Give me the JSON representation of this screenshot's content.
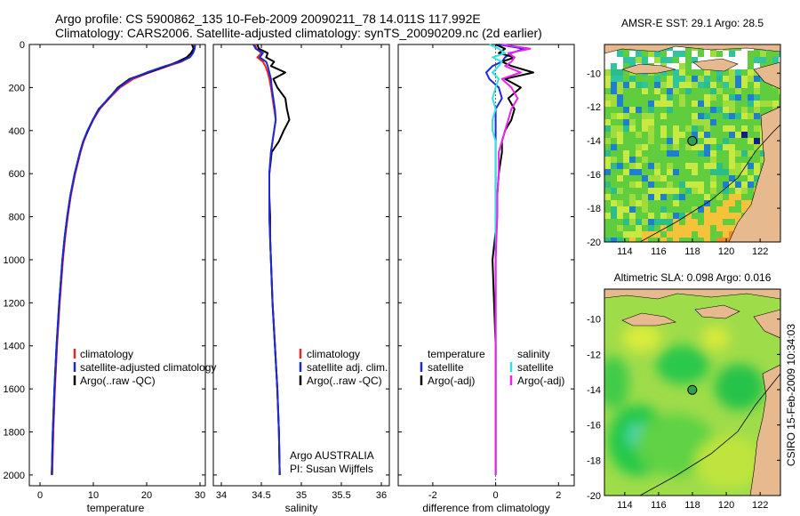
{
  "header": {
    "line1": "Argo profile: CS 5900862_135 10-Feb-2009 20090211_78 14.011S 117.992E",
    "line2": "Climatology: CARS2006. Satellite-adjusted climatology: synTS_20090209.nc (2d earlier)"
  },
  "colors": {
    "climatology": "#e8261f",
    "satellite": "#1a2ad8",
    "argo": "#000000",
    "satellite_salt": "#33e0e8",
    "argo_salt": "#ee22ee"
  },
  "chart_data": [
    {
      "type": "line",
      "id": "temperature",
      "xlabel": "temperature",
      "ylabel": "",
      "xlim": [
        -2,
        31
      ],
      "ylim": [
        2050,
        0
      ],
      "xticks": [
        "0",
        "10",
        "20",
        "30"
      ],
      "yticks": [
        "0",
        "200",
        "400",
        "600",
        "800",
        "1000",
        "1200",
        "1400",
        "1600",
        "1800",
        "2000"
      ],
      "legend": [
        "climatology",
        "satellite-adjusted climatology",
        "Argo(..raw -QC)"
      ],
      "depth": [
        0,
        20,
        40,
        60,
        80,
        100,
        130,
        160,
        200,
        250,
        300,
        350,
        400,
        450,
        500,
        600,
        700,
        800,
        900,
        1000,
        1200,
        1400,
        1600,
        1800,
        2000
      ],
      "series": [
        {
          "name": "climatology",
          "values": [
            29.0,
            28.9,
            28.6,
            28.0,
            26.5,
            24.0,
            20.5,
            17.5,
            15.0,
            13.0,
            11.2,
            10.0,
            9.0,
            8.2,
            7.6,
            6.6,
            5.8,
            5.2,
            4.7,
            4.3,
            3.7,
            3.2,
            2.8,
            2.5,
            2.3
          ]
        },
        {
          "name": "satellite-adjusted",
          "values": [
            29.1,
            29.0,
            28.7,
            28.1,
            26.3,
            23.5,
            20.0,
            17.0,
            14.8,
            12.8,
            11.1,
            9.9,
            8.9,
            8.1,
            7.5,
            6.5,
            5.7,
            5.1,
            4.6,
            4.2,
            3.6,
            3.1,
            2.7,
            2.4,
            2.2
          ]
        },
        {
          "name": "argo",
          "values": [
            28.5,
            28.8,
            28.3,
            27.5,
            25.8,
            23.8,
            20.3,
            16.8,
            14.6,
            12.9,
            11.0,
            9.9,
            9.0,
            8.1,
            7.5,
            6.5,
            5.7,
            5.1,
            4.6,
            4.2,
            3.6,
            3.1,
            2.7,
            2.4,
            2.2
          ]
        }
      ]
    },
    {
      "type": "line",
      "id": "salinity",
      "xlabel": "salinity",
      "xlim": [
        33.9,
        36.1
      ],
      "ylim": [
        2050,
        0
      ],
      "xticks": [
        "34",
        "34.5",
        "35",
        "35.5",
        "36"
      ],
      "legend": [
        "climatology",
        "satellite adj. clim.",
        "Argo(..raw -QC)"
      ],
      "annotations": [
        "Argo AUSTRALIA",
        "PI: Susan Wijffels"
      ],
      "depth": [
        0,
        20,
        40,
        60,
        80,
        100,
        130,
        160,
        200,
        250,
        300,
        350,
        400,
        450,
        500,
        600,
        700,
        800,
        900,
        1000,
        1200,
        1400,
        1600,
        1800,
        2000
      ],
      "series": [
        {
          "name": "climatology",
          "values": [
            34.42,
            34.44,
            34.5,
            34.45,
            34.52,
            34.55,
            34.58,
            34.6,
            34.62,
            34.64,
            34.66,
            34.68,
            34.66,
            34.64,
            34.62,
            34.6,
            34.6,
            34.6,
            34.61,
            34.62,
            34.64,
            34.67,
            34.7,
            34.72,
            34.73
          ]
        },
        {
          "name": "satellite",
          "values": [
            34.4,
            34.43,
            34.52,
            34.48,
            34.56,
            34.58,
            34.6,
            34.62,
            34.63,
            34.65,
            34.67,
            34.68,
            34.66,
            34.64,
            34.62,
            34.6,
            34.6,
            34.6,
            34.61,
            34.62,
            34.64,
            34.67,
            34.7,
            34.72,
            34.73
          ]
        },
        {
          "name": "argo",
          "values": [
            34.45,
            34.47,
            34.58,
            34.56,
            34.66,
            34.62,
            34.8,
            34.65,
            34.7,
            34.8,
            34.82,
            34.85,
            34.78,
            34.72,
            34.63,
            34.6,
            34.6,
            34.61,
            34.61,
            34.62,
            34.64,
            34.67,
            34.7,
            34.72,
            34.73
          ]
        }
      ]
    },
    {
      "type": "line",
      "id": "difference",
      "xlabel": "difference from climatology",
      "xlim": [
        -3.1,
        2.5
      ],
      "ylim": [
        2050,
        0
      ],
      "xticks": [
        "-2",
        "0",
        "2"
      ],
      "legend_left_title": "temperature",
      "legend_right_title": "salinity",
      "legend_left": [
        "satellite",
        "Argo(-adj)"
      ],
      "legend_right": [
        "satellite",
        "Argo(-adj)"
      ],
      "depth": [
        0,
        20,
        40,
        60,
        80,
        100,
        130,
        160,
        200,
        250,
        300,
        350,
        400,
        450,
        500,
        600,
        700,
        800,
        1000,
        1200,
        1400,
        1600,
        1800,
        2000
      ],
      "series": [
        {
          "name": "temperature satellite",
          "values": [
            0.1,
            0.9,
            0.5,
            0.3,
            0.2,
            -0.1,
            -0.3,
            -0.2,
            0.1,
            0.2,
            0.0,
            0.0,
            0.0,
            0.0,
            0.0,
            0.0,
            0.0,
            0.0,
            0.0,
            0.0,
            0.0,
            0.0,
            0.0,
            0.0
          ]
        },
        {
          "name": "temperature argo",
          "values": [
            0.0,
            0.3,
            0.1,
            0.6,
            0.2,
            0.5,
            1.2,
            0.3,
            0.8,
            0.4,
            0.6,
            0.5,
            0.3,
            0.2,
            0.2,
            0.1,
            0.05,
            0.05,
            -0.1,
            -0.05,
            0.0,
            0.0,
            0.0,
            0.0
          ]
        },
        {
          "name": "salinity satellite",
          "values": [
            -0.2,
            0.1,
            0.3,
            -0.1,
            0.2,
            0.1,
            -0.1,
            0.1,
            0.0,
            -0.1,
            0.0,
            -0.1,
            -0.1,
            0.0,
            0.0,
            0.0,
            0.0,
            0.0,
            0.0,
            0.0,
            0.0,
            0.0,
            0.0,
            0.0
          ]
        },
        {
          "name": "salinity argo",
          "values": [
            0.2,
            1.1,
            0.4,
            0.6,
            0.5,
            0.3,
            0.8,
            0.2,
            0.5,
            0.7,
            0.5,
            0.4,
            0.3,
            0.2,
            0.1,
            0.1,
            0.05,
            0.05,
            0.0,
            0.0,
            0.0,
            0.0,
            0.0,
            0.0
          ]
        }
      ]
    },
    {
      "type": "heatmap",
      "id": "sst-map",
      "title": "AMSR-E SST: 29.1 Argo: 28.5",
      "xticks": [
        "114",
        "116",
        "118",
        "120",
        "122"
      ],
      "yticks": [
        "-10",
        "-12",
        "-14",
        "-16",
        "-18",
        "-20"
      ],
      "xlim": [
        112.8,
        123.2
      ],
      "ylim": [
        -20,
        -8.3
      ],
      "float_position": [
        117.99,
        -14.01
      ]
    },
    {
      "type": "heatmap",
      "id": "sla-map",
      "title": "Altimetric SLA: 0.098 Argo: 0.016",
      "xticks": [
        "114",
        "116",
        "118",
        "120",
        "122"
      ],
      "yticks": [
        "-10",
        "-12",
        "-14",
        "-16",
        "-18",
        "-20"
      ],
      "xlim": [
        112.8,
        123.2
      ],
      "ylim": [
        -20,
        -8.3
      ],
      "float_position": [
        117.99,
        -14.01
      ]
    }
  ],
  "footer": {
    "credit": "CSIRO 15-Feb-2009 10:34:03"
  }
}
